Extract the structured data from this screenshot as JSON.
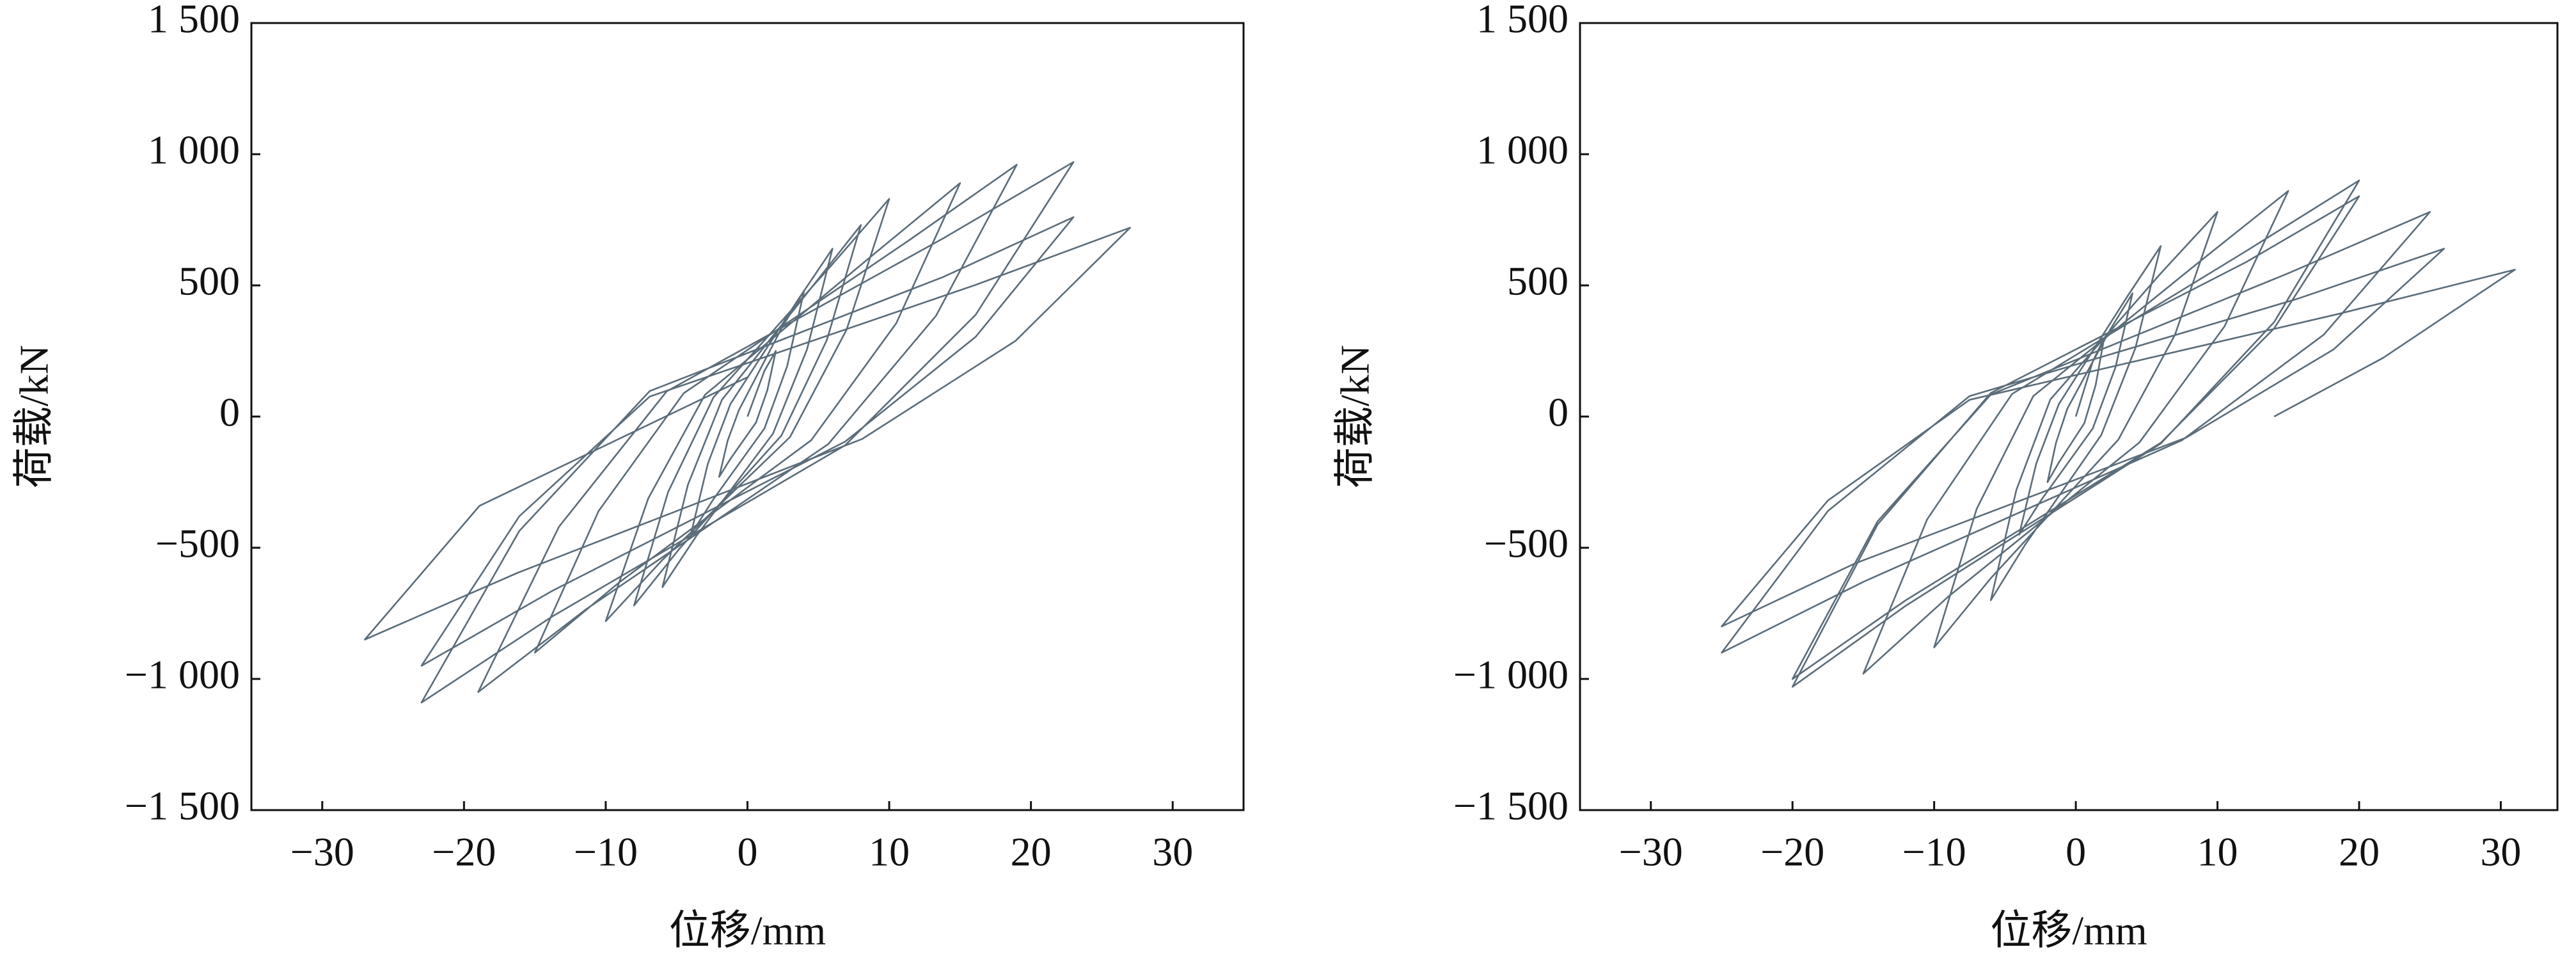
{
  "chart_data": [
    {
      "type": "line",
      "xlabel": "位移/mm",
      "ylabel": "荷载/kN",
      "xlim": [
        -35,
        35
      ],
      "ylim": [
        -1500,
        1500
      ],
      "xticks": [
        {
          "value": -30,
          "label": "−30"
        },
        {
          "value": -20,
          "label": "−20"
        },
        {
          "value": -10,
          "label": "−10"
        },
        0,
        10,
        20,
        30
      ],
      "yticks": [
        {
          "value": 1500,
          "label": "1 500"
        },
        {
          "value": 1000,
          "label": "1 000"
        },
        500,
        0,
        {
          "value": -500,
          "label": "−500"
        },
        {
          "value": -1000,
          "label": "−1 000"
        },
        {
          "value": -1500,
          "label": "−1 500"
        }
      ],
      "color": "#5b6d7a",
      "x": [
        0,
        1.2,
        2,
        1.4,
        0.6,
        -1.2,
        -2,
        -1.4,
        -0.6,
        2.4,
        4,
        2.8,
        1.2,
        -2.4,
        -4,
        -2.8,
        -1.2,
        3.6,
        6,
        4.2,
        1.8,
        -3.6,
        -6,
        -4.2,
        -1.8,
        4.8,
        8,
        5.6,
        2.4,
        -4.8,
        -8,
        -5.6,
        -2.4,
        6,
        10,
        7,
        3,
        -6,
        -10,
        -7,
        -3,
        9,
        15,
        10.5,
        4.5,
        -9,
        -15,
        -10.5,
        -4.5,
        11.4,
        19,
        13.3,
        5.7,
        -11.4,
        -19,
        -13.3,
        -5.7,
        13.8,
        23,
        16.1,
        6.9,
        -13.8,
        -23,
        -16.1,
        -6.9,
        13.8,
        23,
        16.1,
        6.9,
        -13.8,
        -23,
        -16.1,
        -6.9,
        16.2,
        27,
        18.9,
        8.1,
        -16.2,
        -27,
        -18.9,
        0
      ],
      "values": [
        0,
        175,
        250,
        100,
        -23,
        -161,
        -230,
        -92,
        25,
        336,
        480,
        192,
        -45,
        -315,
        -450,
        -180,
        48,
        448,
        640,
        256,
        -65,
        -455,
        -650,
        -260,
        64,
        511,
        730,
        292,
        -72,
        -504,
        -720,
        -288,
        73,
        581,
        830,
        332,
        -78,
        -546,
        -780,
        -312,
        83,
        623,
        890,
        356,
        -90,
        -630,
        -900,
        -360,
        89,
        672,
        960,
        384,
        -105,
        -735,
        -1050,
        -420,
        96,
        679,
        970,
        388,
        -109,
        -763,
        -1090,
        -436,
        97,
        532,
        760,
        304,
        -95,
        -665,
        -950,
        -380,
        76,
        504,
        720,
        288,
        -85,
        -595,
        -850,
        -340,
        150
      ]
    },
    {
      "type": "line",
      "xlabel": "位移/mm",
      "ylabel": "荷载/kN",
      "xlim": [
        -35,
        34
      ],
      "ylim": [
        -1500,
        1500
      ],
      "xticks": [
        {
          "value": -30,
          "label": "−30"
        },
        {
          "value": -20,
          "label": "−20"
        },
        {
          "value": -10,
          "label": "−10"
        },
        0,
        10,
        20,
        30
      ],
      "yticks": [
        {
          "value": 1500,
          "label": "1 500"
        },
        {
          "value": 1000,
          "label": "1 000"
        },
        500,
        0,
        {
          "value": -500,
          "label": "−500"
        },
        {
          "value": -1000,
          "label": "−1 000"
        },
        {
          "value": -1500,
          "label": "−1 500"
        }
      ],
      "color": "#5b6d7a",
      "x": [
        0,
        1.2,
        2,
        1.4,
        0.6,
        -1.2,
        -2,
        -1.4,
        -0.6,
        2.4,
        4,
        2.8,
        1.2,
        -2.4,
        -4,
        -2.8,
        -1.2,
        3.6,
        6,
        4.2,
        1.8,
        -3.6,
        -6,
        -4.2,
        -1.8,
        6,
        10,
        7,
        3,
        -6,
        -10,
        -7,
        -3,
        9,
        15,
        10.5,
        4.5,
        -9,
        -15,
        -10.5,
        -4.5,
        12,
        20,
        14,
        6,
        -12,
        -20,
        -14,
        -6,
        12,
        20,
        14,
        6,
        -12,
        -20,
        -14,
        -6,
        15,
        25,
        17.5,
        7.5,
        -15,
        -25,
        -17.5,
        -7.5,
        15.6,
        26,
        18.2,
        7.8,
        -15.6,
        -25,
        -17.5,
        -7.5,
        18.6,
        31,
        21.7,
        14
      ],
      "values": [
        0,
        210,
        300,
        120,
        -25,
        -175,
        -250,
        -100,
        30,
        329,
        470,
        188,
        -45,
        -315,
        -450,
        -180,
        47,
        455,
        650,
        260,
        -70,
        -490,
        -700,
        -280,
        65,
        546,
        780,
        312,
        -88,
        -616,
        -880,
        -352,
        78,
        602,
        860,
        344,
        -98,
        -686,
        -980,
        -392,
        86,
        630,
        900,
        360,
        -103,
        -721,
        -1030,
        -412,
        90,
        588,
        840,
        336,
        -100,
        -700,
        -1000,
        -400,
        84,
        546,
        780,
        312,
        -90,
        -630,
        -900,
        -360,
        78,
        448,
        640,
        256,
        -80,
        -560,
        -800,
        -320,
        64,
        392,
        560,
        224,
        0
      ]
    }
  ]
}
